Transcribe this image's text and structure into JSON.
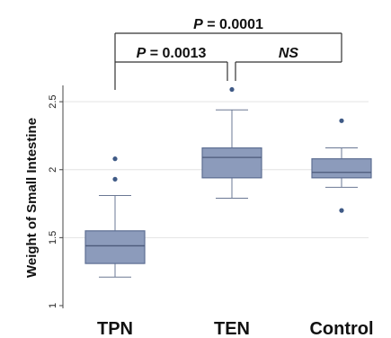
{
  "chart_data": {
    "type": "boxplot",
    "ylabel": "Weight of Small Intestine",
    "ylim": [
      0.98,
      2.62
    ],
    "yticks": [
      1,
      1.5,
      2,
      2.5
    ],
    "ytick_labels": [
      "1",
      "1.5",
      "2",
      "2.5"
    ],
    "grid": true,
    "box_color": "#8c9bbb",
    "box_edge_color": "#5d6e93",
    "categories": [
      "TPN",
      "TEN",
      "Control"
    ],
    "boxes": [
      {
        "category": "TPN",
        "whisker_low": 1.21,
        "q1": 1.31,
        "median": 1.44,
        "q3": 1.55,
        "whisker_high": 1.81,
        "outliers": [
          1.93,
          2.08
        ]
      },
      {
        "category": "TEN",
        "whisker_low": 1.79,
        "q1": 1.94,
        "median": 2.09,
        "q3": 2.16,
        "whisker_high": 2.44,
        "outliers": [
          2.59
        ]
      },
      {
        "category": "Control",
        "whisker_low": 1.87,
        "q1": 1.94,
        "median": 1.98,
        "q3": 2.08,
        "whisker_high": 2.16,
        "outliers": [
          1.7,
          2.36
        ]
      }
    ],
    "significance": [
      {
        "from": "TPN",
        "to": "TEN",
        "label": "P = 0.0013"
      },
      {
        "from": "TEN",
        "to": "Control",
        "label": "NS"
      },
      {
        "from": "TPN",
        "to": "Control",
        "label": "P = 0.0001"
      }
    ]
  }
}
